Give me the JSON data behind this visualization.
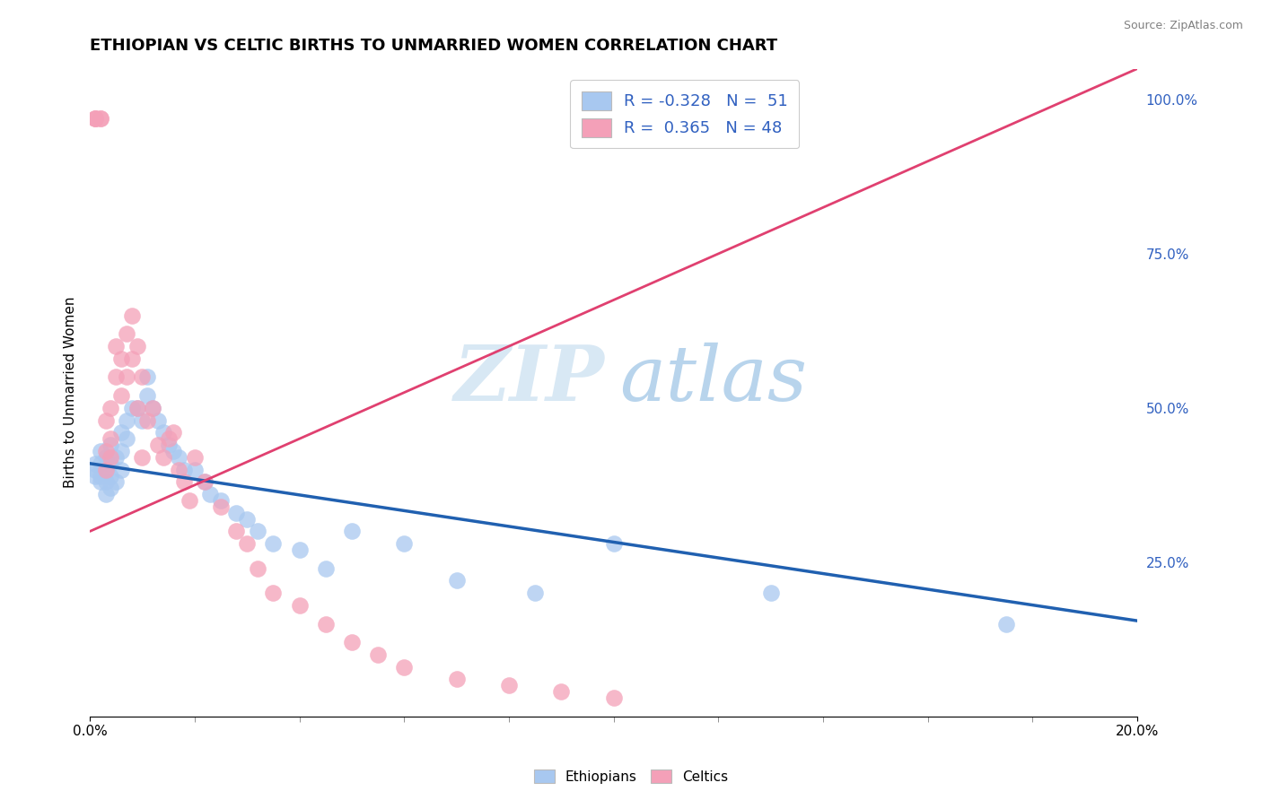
{
  "title": "ETHIOPIAN VS CELTIC BIRTHS TO UNMARRIED WOMEN CORRELATION CHART",
  "source": "Source: ZipAtlas.com",
  "ylabel": "Births to Unmarried Women",
  "xlim": [
    0.0,
    0.2
  ],
  "ylim": [
    0.0,
    1.05
  ],
  "ytick_right_labels": [
    "100.0%",
    "75.0%",
    "50.0%",
    "25.0%"
  ],
  "ytick_right_values": [
    1.0,
    0.75,
    0.5,
    0.25
  ],
  "blue_color": "#A8C8F0",
  "pink_color": "#F4A0B8",
  "blue_line_color": "#2060B0",
  "pink_line_color": "#E04070",
  "legend_text_color": "#3060C0",
  "background_color": "#FFFFFF",
  "grid_color": "#CCCCCC",
  "title_fontsize": 13,
  "axis_label_fontsize": 11,
  "tick_fontsize": 11,
  "ethiopians_x": [
    0.001,
    0.001,
    0.001,
    0.002,
    0.002,
    0.002,
    0.002,
    0.003,
    0.003,
    0.003,
    0.003,
    0.004,
    0.004,
    0.004,
    0.004,
    0.005,
    0.005,
    0.006,
    0.006,
    0.006,
    0.007,
    0.007,
    0.008,
    0.009,
    0.01,
    0.011,
    0.011,
    0.012,
    0.013,
    0.014,
    0.015,
    0.016,
    0.017,
    0.018,
    0.02,
    0.022,
    0.023,
    0.025,
    0.028,
    0.03,
    0.032,
    0.035,
    0.04,
    0.045,
    0.05,
    0.06,
    0.07,
    0.085,
    0.1,
    0.13,
    0.175
  ],
  "ethiopians_y": [
    0.39,
    0.4,
    0.41,
    0.38,
    0.39,
    0.41,
    0.43,
    0.36,
    0.38,
    0.4,
    0.42,
    0.37,
    0.39,
    0.41,
    0.44,
    0.38,
    0.42,
    0.4,
    0.43,
    0.46,
    0.45,
    0.48,
    0.5,
    0.5,
    0.48,
    0.52,
    0.55,
    0.5,
    0.48,
    0.46,
    0.44,
    0.43,
    0.42,
    0.4,
    0.4,
    0.38,
    0.36,
    0.35,
    0.33,
    0.32,
    0.3,
    0.28,
    0.27,
    0.24,
    0.3,
    0.28,
    0.22,
    0.2,
    0.28,
    0.2,
    0.15
  ],
  "celtics_x": [
    0.001,
    0.001,
    0.001,
    0.002,
    0.002,
    0.003,
    0.003,
    0.003,
    0.004,
    0.004,
    0.004,
    0.005,
    0.005,
    0.006,
    0.006,
    0.007,
    0.007,
    0.008,
    0.008,
    0.009,
    0.009,
    0.01,
    0.01,
    0.011,
    0.012,
    0.013,
    0.014,
    0.015,
    0.016,
    0.017,
    0.018,
    0.019,
    0.02,
    0.022,
    0.025,
    0.028,
    0.03,
    0.032,
    0.035,
    0.04,
    0.045,
    0.05,
    0.055,
    0.06,
    0.07,
    0.08,
    0.09,
    0.1
  ],
  "celtics_y": [
    0.97,
    0.97,
    0.97,
    0.97,
    0.97,
    0.4,
    0.43,
    0.48,
    0.42,
    0.45,
    0.5,
    0.55,
    0.6,
    0.52,
    0.58,
    0.62,
    0.55,
    0.65,
    0.58,
    0.6,
    0.5,
    0.55,
    0.42,
    0.48,
    0.5,
    0.44,
    0.42,
    0.45,
    0.46,
    0.4,
    0.38,
    0.35,
    0.42,
    0.38,
    0.34,
    0.3,
    0.28,
    0.24,
    0.2,
    0.18,
    0.15,
    0.12,
    0.1,
    0.08,
    0.06,
    0.05,
    0.04,
    0.03
  ],
  "eth_trend_x0": 0.0,
  "eth_trend_y0": 0.41,
  "eth_trend_x1": 0.2,
  "eth_trend_y1": 0.155,
  "cel_trend_x0": 0.0,
  "cel_trend_y0": 0.3,
  "cel_trend_x1": 0.2,
  "cel_trend_y1": 1.05
}
